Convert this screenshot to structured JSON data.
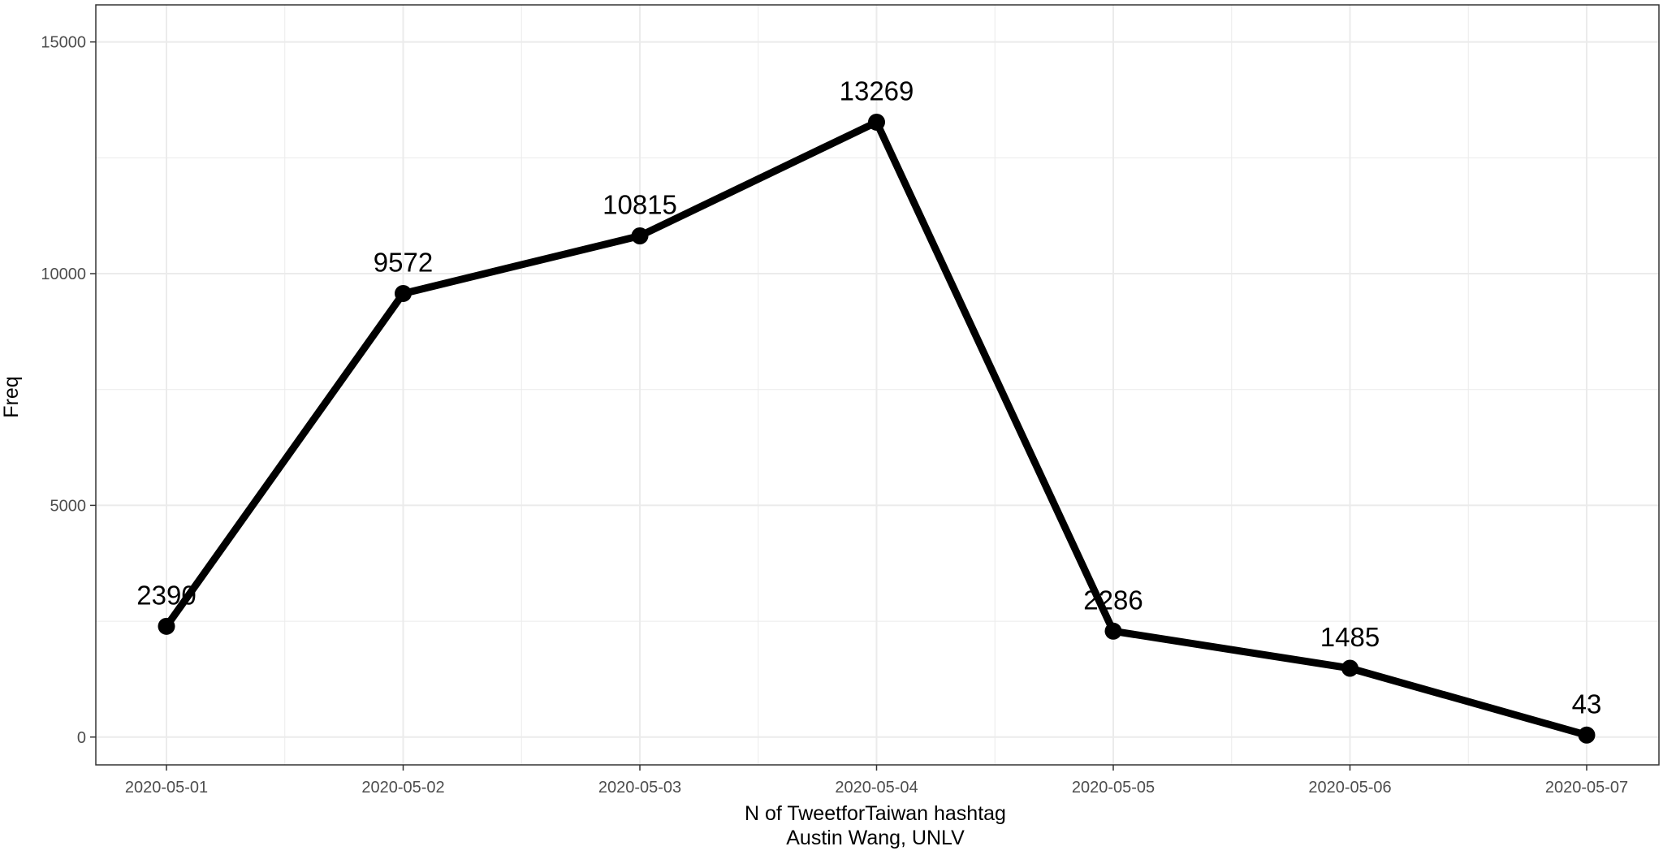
{
  "chart_data": {
    "type": "line",
    "title": "",
    "xlabel": "N of TweetforTaiwan hashtag",
    "caption": "Austin Wang, UNLV",
    "ylabel": "Freq",
    "categories": [
      "2020-05-01",
      "2020-05-02",
      "2020-05-03",
      "2020-05-04",
      "2020-05-05",
      "2020-05-06",
      "2020-05-07"
    ],
    "series": [
      {
        "values": [
          2390,
          9572,
          10815,
          13269,
          2286,
          1485,
          43
        ]
      }
    ],
    "data_labels": [
      "2390",
      "9572",
      "10815",
      "13269",
      "2286",
      "1485",
      "43"
    ],
    "y_ticks": [
      0,
      5000,
      10000,
      15000
    ],
    "y_tick_labels": [
      "0",
      "5000",
      "10000",
      "15000"
    ],
    "ylim": [
      -600,
      15800
    ],
    "grid": true,
    "legend": "none",
    "line_color": "#000000",
    "grid_color": "#ebebeb",
    "panel_border_color": "#333333"
  }
}
